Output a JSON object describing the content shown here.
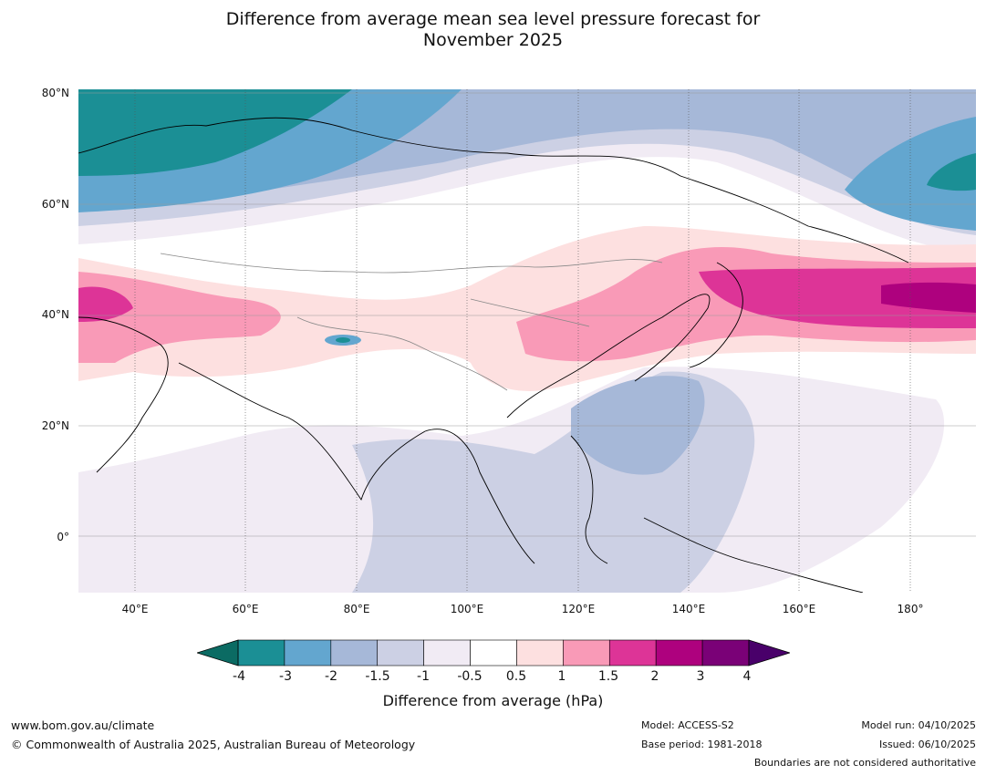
{
  "title_line1": "Difference from average mean sea level pressure forecast for",
  "title_line2": "November 2025",
  "map": {
    "lat_labels": [
      "80°N",
      "60°N",
      "40°N",
      "20°N",
      "0°"
    ],
    "lon_labels": [
      "40°E",
      "60°E",
      "80°E",
      "100°E",
      "120°E",
      "140°E",
      "160°E",
      "180°"
    ],
    "projection_note": "Asia region, 30°E–190°E, 10°S–80°N"
  },
  "colorbar": {
    "ticks": [
      "-4",
      "-3",
      "-2",
      "-1.5",
      "-1",
      "-0.5",
      "0.5",
      "1",
      "1.5",
      "2",
      "3",
      "4"
    ],
    "colors": [
      "#1b8f95",
      "#63a6cf",
      "#a6b8d8",
      "#ccd0e4",
      "#f1ebf4",
      "#ffffff",
      "#fde0e0",
      "#f99ab7",
      "#dd3497",
      "#ae017e",
      "#7a0177"
    ],
    "under_color": "#0b6b63",
    "over_color": "#49006a",
    "title": "Difference from average (hPa)"
  },
  "footer": {
    "website": "www.bom.gov.au/climate",
    "copyright": "© Commonwealth of Australia 2025, Australian Bureau of Meteorology",
    "model": "Model: ACCESS-S2",
    "base_period": "Base period: 1981-2018",
    "model_run": "Model run: 04/10/2025",
    "issued": "Issued: 06/10/2025",
    "disclaimer": "Boundaries are not considered authoritative"
  }
}
